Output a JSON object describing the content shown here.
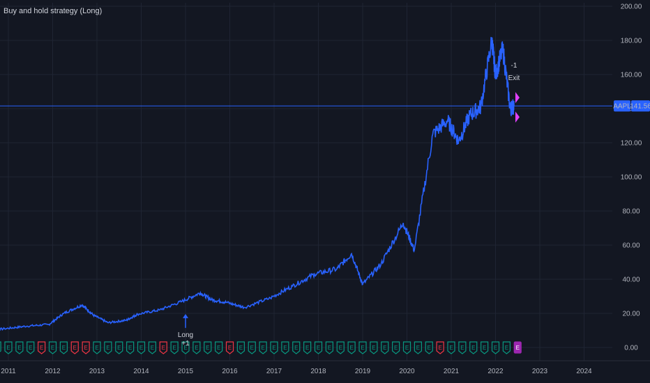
{
  "strategy_title": "Buy and hold strategy (Long)",
  "colors": {
    "background": "#131722",
    "price_line": "#2962ff",
    "accent": "#2962ff",
    "earnings_positive": "#089981",
    "earnings_negative": "#f23645",
    "earnings_upcoming": "#9c27b0",
    "exit_marker": "#e040fb"
  },
  "price_label": {
    "symbol": "AAPL",
    "value": "141.56"
  },
  "entry": {
    "label": "Long",
    "quantity": "+1"
  },
  "exit": {
    "label": "Exit",
    "quantity": "-1"
  },
  "icons": [
    "entry-arrow-up-icon",
    "earnings-flag-icon"
  ],
  "earnings_markers": [
    "E",
    "E",
    "E",
    "E",
    "E",
    "E",
    "E",
    "E",
    "E",
    "E",
    "E",
    "E",
    "E",
    "E",
    "E",
    "E",
    "E",
    "E",
    "E",
    "E",
    "E",
    "E",
    "E",
    "E",
    "E",
    "E",
    "E",
    "E",
    "E",
    "E",
    "E",
    "E",
    "E",
    "E",
    "E",
    "E",
    "E",
    "E",
    "E",
    "E",
    "E",
    "E",
    "E",
    "E",
    "E",
    "E",
    "E",
    "E",
    "E"
  ],
  "chart_data": {
    "type": "line",
    "title": "Buy and hold strategy (Long)",
    "series": [
      {
        "name": "AAPL",
        "x": [
          "2010-06",
          "2010-12",
          "2011-06",
          "2011-12",
          "2012-04",
          "2012-09",
          "2012-12",
          "2013-04",
          "2013-09",
          "2013-12",
          "2014-06",
          "2014-12",
          "2015-05",
          "2015-08",
          "2015-12",
          "2016-05",
          "2016-12",
          "2017-06",
          "2017-12",
          "2018-06",
          "2018-10",
          "2019-01",
          "2019-06",
          "2019-12",
          "2020-03",
          "2020-08",
          "2020-12",
          "2021-03",
          "2021-06",
          "2021-09",
          "2021-12",
          "2022-01",
          "2022-03",
          "2022-05",
          "2022-06"
        ],
        "values": [
          9.5,
          11,
          12.5,
          13.5,
          20,
          25,
          19,
          14.5,
          16,
          19.5,
          22,
          27,
          32,
          28,
          26.5,
          23.5,
          29,
          36,
          43,
          46,
          55,
          37,
          49,
          73,
          57,
          125,
          133,
          121,
          136,
          141,
          180,
          160,
          175,
          140,
          141.56
        ]
      }
    ],
    "x_ticks": [
      "2011",
      "2012",
      "2013",
      "2014",
      "2015",
      "2016",
      "2017",
      "2018",
      "2019",
      "2020",
      "2021",
      "2022",
      "2023",
      "2024"
    ],
    "y_ticks": [
      "0.00",
      "20.00",
      "40.00",
      "60.00",
      "80.00",
      "100.00",
      "120.00",
      "140.00",
      "160.00",
      "180.00",
      "200.00"
    ],
    "ylim": [
      0,
      200
    ],
    "current_price": 141.56,
    "entry_date": "2015-01",
    "entry_price": 27,
    "exit_date": "2022-06",
    "exit_price": 141.56,
    "earnings": [
      "2010-07",
      "2010-10",
      "2011-01",
      "2011-04",
      "2011-07",
      "2011-10",
      "2012-01",
      "2012-04",
      "2012-07",
      "2012-10",
      "2013-01",
      "2013-04",
      "2013-07",
      "2013-10",
      "2014-01",
      "2014-04",
      "2014-07",
      "2014-10",
      "2015-01",
      "2015-04",
      "2015-07",
      "2015-10",
      "2016-01",
      "2016-04",
      "2016-07",
      "2016-10",
      "2017-01",
      "2017-04",
      "2017-07",
      "2017-10",
      "2018-01",
      "2018-04",
      "2018-07",
      "2018-10",
      "2019-01",
      "2019-04",
      "2019-07",
      "2019-10",
      "2020-01",
      "2020-04",
      "2020-07",
      "2020-10",
      "2021-01",
      "2021-04",
      "2021-07",
      "2021-10",
      "2022-01",
      "2022-04",
      "2022-07"
    ],
    "earnings_negative": [
      "2011-10",
      "2012-07",
      "2012-10",
      "2014-07",
      "2016-01",
      "2020-10"
    ],
    "earnings_upcoming": [
      "2022-07"
    ],
    "grid": true
  }
}
